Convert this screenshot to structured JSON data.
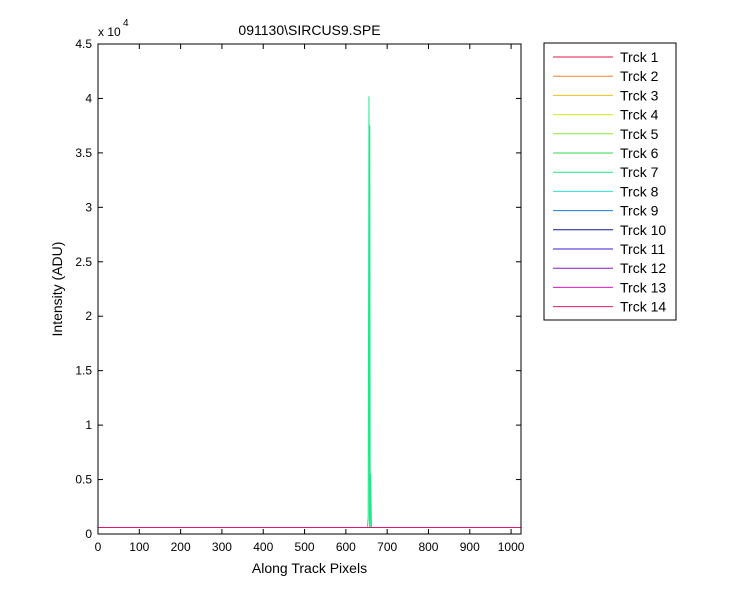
{
  "chart_data": {
    "type": "line",
    "title": "091130\\SIRCUS9.SPE",
    "xlabel": "Along Track Pixels",
    "ylabel": "Intensity (ADU)",
    "xlim": [
      0,
      1024
    ],
    "ylim": [
      0,
      45000
    ],
    "x_ticks": [
      0,
      100,
      200,
      300,
      400,
      500,
      600,
      700,
      800,
      900,
      1000
    ],
    "y_ticks": [
      0,
      0.5,
      1,
      1.5,
      2,
      2.5,
      3,
      3.5,
      4,
      4.5
    ],
    "y_tick_labels": [
      "0",
      "0.5",
      "1",
      "1.5",
      "2",
      "2.5",
      "3",
      "3.5",
      "4",
      "4.5"
    ],
    "y_multiplier_base": "x 10",
    "y_multiplier_exp": "4",
    "grid": false,
    "legend_position": "outside-right",
    "series": [
      {
        "name": "Trck 1",
        "color": "#e6194b",
        "points": [
          [
            0,
            600
          ],
          [
            1024,
            600
          ]
        ]
      },
      {
        "name": "Trck 2",
        "color": "#f58231",
        "points": [
          [
            0,
            600
          ],
          [
            1024,
            600
          ]
        ]
      },
      {
        "name": "Trck 3",
        "color": "#e8c21a",
        "points": [
          [
            0,
            600
          ],
          [
            1024,
            600
          ]
        ]
      },
      {
        "name": "Trck 4",
        "color": "#d8e81a",
        "points": [
          [
            0,
            600
          ],
          [
            1024,
            600
          ]
        ]
      },
      {
        "name": "Trck 5",
        "color": "#8be83a",
        "points": [
          [
            0,
            600
          ],
          [
            1024,
            600
          ]
        ]
      },
      {
        "name": "Trck 6",
        "color": "#2fdc4a",
        "points": [
          [
            0,
            600
          ],
          [
            1024,
            600
          ]
        ]
      },
      {
        "name": "Trck 7",
        "color": "#1de88a",
        "points": [
          [
            0,
            600
          ],
          [
            652,
            600
          ],
          [
            654,
            1500
          ],
          [
            656,
            40200
          ],
          [
            657,
            600
          ],
          [
            658,
            37500
          ],
          [
            659,
            600
          ],
          [
            660,
            5500
          ],
          [
            662,
            600
          ],
          [
            1024,
            600
          ]
        ]
      },
      {
        "name": "Trck 8",
        "color": "#2ee0d8",
        "points": [
          [
            0,
            600
          ],
          [
            1024,
            600
          ]
        ]
      },
      {
        "name": "Trck 9",
        "color": "#1a7ee0",
        "points": [
          [
            0,
            600
          ],
          [
            1024,
            600
          ]
        ]
      },
      {
        "name": "Trck 10",
        "color": "#0a1a9a",
        "points": [
          [
            0,
            600
          ],
          [
            1024,
            600
          ]
        ]
      },
      {
        "name": "Trck 11",
        "color": "#3a18d8",
        "points": [
          [
            0,
            600
          ],
          [
            1024,
            600
          ]
        ]
      },
      {
        "name": "Trck 12",
        "color": "#8a18c8",
        "points": [
          [
            0,
            600
          ],
          [
            1024,
            600
          ]
        ]
      },
      {
        "name": "Trck 13",
        "color": "#e018c8",
        "points": [
          [
            0,
            600
          ],
          [
            1024,
            600
          ]
        ]
      },
      {
        "name": "Trck 14",
        "color": "#e01868",
        "points": [
          [
            0,
            600
          ],
          [
            1024,
            600
          ]
        ]
      }
    ]
  }
}
